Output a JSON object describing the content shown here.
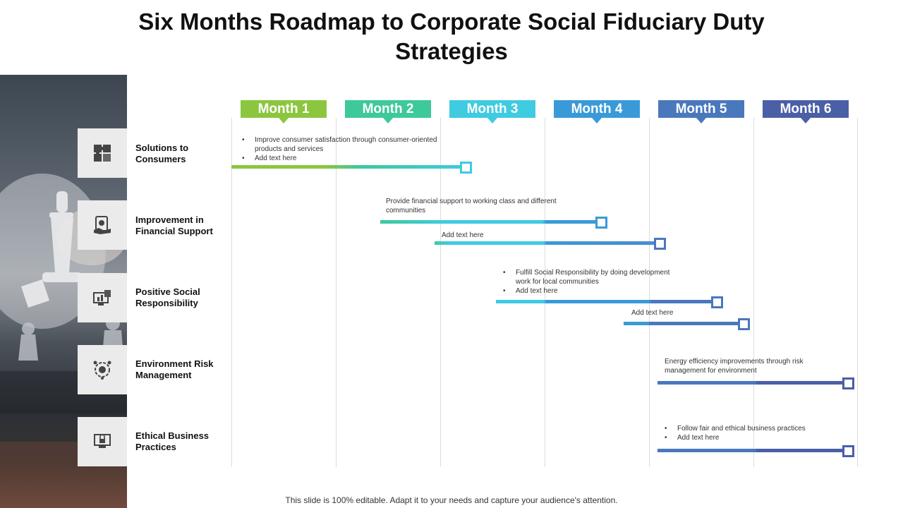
{
  "title": "Six Months Roadmap to Corporate Social Fiduciary Duty Strategies",
  "months": [
    {
      "label": "Month 1",
      "color": "#8cc63f"
    },
    {
      "label": "Month 2",
      "color": "#3ec99a"
    },
    {
      "label": "Month 3",
      "color": "#3fcbe0"
    },
    {
      "label": "Month 4",
      "color": "#3a9ad9"
    },
    {
      "label": "Month 5",
      "color": "#4a78bd"
    },
    {
      "label": "Month 6",
      "color": "#4a5fa6"
    }
  ],
  "categories": [
    {
      "label": "Solutions to Consumers",
      "icon": "puzzle-icon"
    },
    {
      "label": "Improvement in Financial Support",
      "icon": "money-hand-icon"
    },
    {
      "label": "Positive Social Responsibility",
      "icon": "monitor-chart-icon"
    },
    {
      "label": "Environment Risk Management",
      "icon": "target-gear-icon"
    },
    {
      "label": "Ethical Business Practices",
      "icon": "monitor-lock-icon"
    }
  ],
  "notes": {
    "consumers": [
      "Improve consumer satisfaction through consumer-oriented products and services",
      "Add text here"
    ],
    "financial_1": "Provide financial support to working class and different communities",
    "financial_2": "Add text here",
    "social": [
      "Fulfill Social Responsibility by doing development work for local communities",
      "Add text here"
    ],
    "social_2": "Add text here",
    "environment": "Energy efficiency improvements through risk management  for environment",
    "ethical": [
      "Follow fair and ethical business practices",
      "Add text here"
    ]
  },
  "footer": "This slide is 100% editable. Adapt it to your needs and capture your audience's attention."
}
